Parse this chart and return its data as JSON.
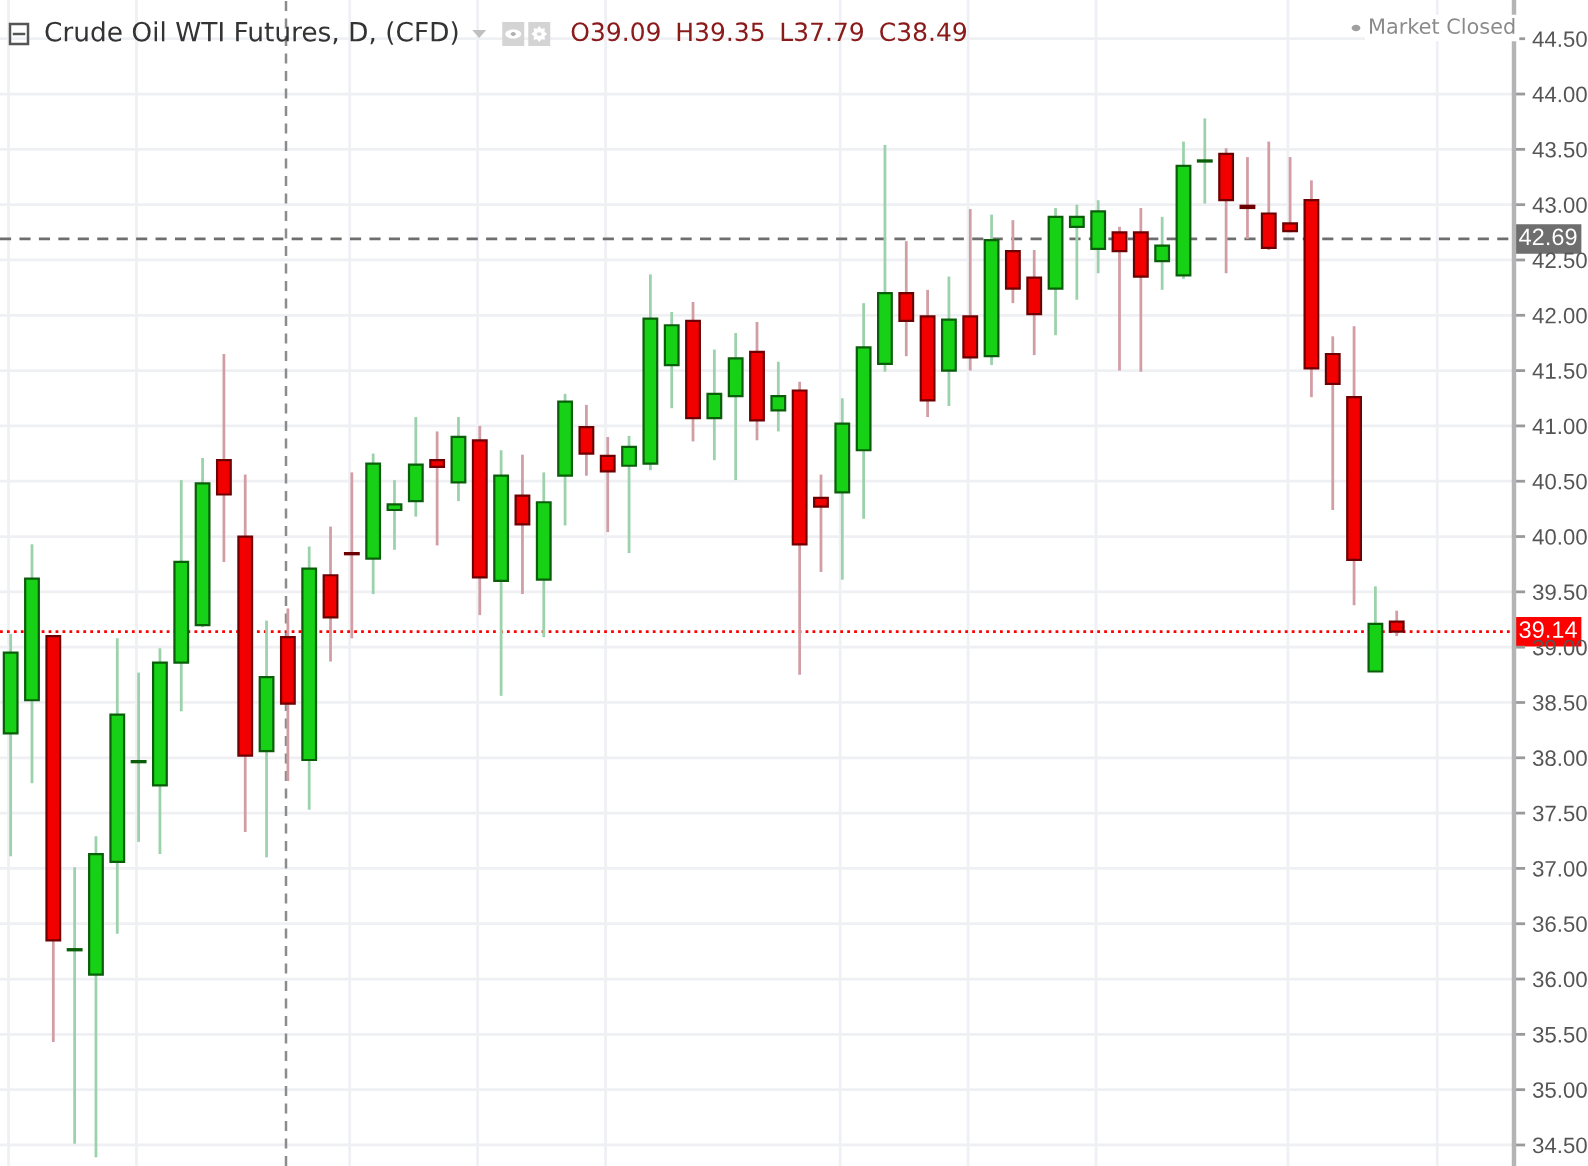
{
  "chart_data": {
    "type": "candlestick",
    "title": "Crude Oil WTI Futures, D, (CFD)",
    "annotations": [
      "O39.09",
      "H39.35",
      "L37.79",
      "C38.49",
      "Market Closed"
    ],
    "categories": [
      null,
      null,
      null,
      null,
      null,
      null,
      null,
      null,
      null,
      null,
      null,
      null,
      null,
      null,
      null,
      null,
      null,
      null,
      null,
      null,
      null,
      null,
      null,
      null,
      null,
      null,
      null,
      null,
      null,
      null,
      null,
      null,
      null,
      null,
      null,
      null,
      null,
      null,
      null,
      null,
      null,
      null,
      null,
      null,
      null,
      null,
      null,
      null,
      null,
      null,
      null,
      null,
      null,
      null,
      null,
      null,
      null,
      null,
      null,
      null,
      null,
      null,
      null,
      null,
      null,
      null,
      null,
      null,
      null,
      null,
      null
    ],
    "ohlc": [
      [
        38.22,
        39.12,
        37.11,
        38.95
      ],
      [
        38.52,
        39.93,
        37.77,
        39.62
      ],
      [
        39.1,
        39.1,
        35.43,
        36.35
      ],
      [
        36.26,
        37.01,
        34.51,
        36.27
      ],
      [
        36.04,
        37.29,
        34.39,
        37.13
      ],
      [
        37.06,
        39.08,
        36.41,
        38.39
      ],
      [
        37.96,
        38.77,
        37.24,
        37.97
      ],
      [
        37.75,
        38.99,
        37.13,
        38.86
      ],
      [
        38.86,
        40.51,
        38.42,
        39.77
      ],
      [
        39.2,
        40.71,
        39.18,
        40.48
      ],
      [
        40.69,
        41.65,
        39.77,
        40.38
      ],
      [
        40.0,
        40.56,
        37.33,
        38.02
      ],
      [
        38.06,
        39.24,
        37.1,
        38.73
      ],
      [
        39.09,
        39.35,
        37.79,
        38.49
      ],
      [
        37.98,
        39.91,
        37.53,
        39.71
      ],
      [
        39.65,
        40.09,
        38.87,
        39.27
      ],
      [
        39.85,
        40.58,
        39.08,
        39.84
      ],
      [
        39.8,
        40.75,
        39.48,
        40.66
      ],
      [
        40.24,
        40.51,
        39.88,
        40.29
      ],
      [
        40.32,
        41.08,
        40.18,
        40.65
      ],
      [
        40.69,
        40.95,
        39.92,
        40.63
      ],
      [
        40.49,
        41.08,
        40.32,
        40.9
      ],
      [
        40.87,
        41.0,
        39.29,
        39.63
      ],
      [
        39.6,
        40.78,
        38.56,
        40.55
      ],
      [
        40.37,
        40.74,
        39.48,
        40.11
      ],
      [
        39.61,
        40.58,
        39.09,
        40.31
      ],
      [
        40.55,
        41.29,
        40.1,
        41.22
      ],
      [
        40.99,
        41.19,
        40.55,
        40.75
      ],
      [
        40.73,
        40.9,
        40.04,
        40.59
      ],
      [
        40.64,
        40.91,
        39.85,
        40.81
      ],
      [
        40.66,
        42.37,
        40.6,
        41.97
      ],
      [
        41.55,
        42.03,
        41.16,
        41.91
      ],
      [
        41.95,
        42.12,
        40.86,
        41.07
      ],
      [
        41.07,
        41.69,
        40.69,
        41.29
      ],
      [
        41.27,
        41.84,
        40.51,
        41.61
      ],
      [
        41.67,
        41.94,
        40.87,
        41.05
      ],
      [
        41.14,
        41.58,
        40.95,
        41.27
      ],
      [
        41.32,
        41.4,
        38.75,
        39.93
      ],
      [
        40.35,
        40.56,
        39.68,
        40.27
      ],
      [
        40.4,
        41.25,
        39.61,
        41.02
      ],
      [
        40.78,
        42.11,
        40.16,
        41.71
      ],
      [
        41.56,
        43.54,
        41.49,
        42.2
      ],
      [
        42.2,
        42.67,
        41.63,
        41.95
      ],
      [
        41.99,
        42.23,
        41.08,
        41.23
      ],
      [
        41.5,
        42.35,
        41.18,
        41.96
      ],
      [
        41.99,
        42.96,
        41.5,
        41.62
      ],
      [
        41.63,
        42.91,
        41.55,
        42.68
      ],
      [
        42.58,
        42.86,
        42.11,
        42.24
      ],
      [
        42.34,
        42.59,
        41.64,
        42.01
      ],
      [
        42.24,
        42.97,
        41.82,
        42.89
      ],
      [
        42.8,
        43.0,
        42.14,
        42.89
      ],
      [
        42.6,
        43.04,
        42.38,
        42.94
      ],
      [
        42.75,
        42.8,
        41.5,
        42.58
      ],
      [
        42.75,
        42.97,
        41.49,
        42.35
      ],
      [
        42.49,
        42.89,
        42.23,
        42.63
      ],
      [
        42.36,
        43.57,
        42.33,
        43.35
      ],
      [
        43.39,
        43.78,
        43.01,
        43.4
      ],
      [
        43.46,
        43.51,
        42.38,
        43.04
      ],
      [
        42.99,
        43.43,
        42.69,
        42.97
      ],
      [
        42.92,
        43.57,
        42.59,
        42.61
      ],
      [
        42.83,
        43.43,
        42.75,
        42.76
      ],
      [
        43.04,
        43.22,
        41.26,
        41.52
      ],
      [
        41.65,
        41.81,
        40.24,
        41.38
      ],
      [
        41.26,
        41.9,
        39.38,
        39.79
      ],
      [
        38.78,
        39.55,
        38.78,
        39.21
      ],
      [
        39.23,
        39.33,
        39.1,
        39.14
      ],
      null,
      null,
      null,
      null,
      null
    ],
    "colors": [
      "#17d117",
      "#17d117",
      "#f20000",
      "#17d117",
      "#17d117",
      "#17d117",
      "#17d117",
      "#17d117",
      "#17d117",
      "#17d117",
      "#f20000",
      "#f20000",
      "#17d117",
      "#f20000",
      "#17d117",
      "#f20000",
      "#f20000",
      "#17d117",
      "#17d117",
      "#17d117",
      "#f20000",
      "#17d117",
      "#f20000",
      "#17d117",
      "#f20000",
      "#17d117",
      "#17d117",
      "#f20000",
      "#f20000",
      "#17d117",
      "#17d117",
      "#17d117",
      "#f20000",
      "#17d117",
      "#17d117",
      "#f20000",
      "#17d117",
      "#f20000",
      "#f20000",
      "#17d117",
      "#17d117",
      "#17d117",
      "#f20000",
      "#f20000",
      "#17d117",
      "#f20000",
      "#17d117",
      "#f20000",
      "#f20000",
      "#17d117",
      "#17d117",
      "#17d117",
      "#f20000",
      "#f20000",
      "#17d117",
      "#17d117",
      "#17d117",
      "#f20000",
      "#f20000",
      "#f20000",
      "#f20000",
      "#f20000",
      "#f20000",
      "#f20000",
      "#17d117",
      "#f20000",
      null,
      null,
      null,
      null,
      null
    ],
    "ylim": [
      34.31,
      44.85
    ],
    "yticks": [
      {
        "value": 34.5,
        "label": "34.50"
      },
      {
        "value": 35,
        "label": "35.00"
      },
      {
        "value": 35.5,
        "label": "35.50"
      },
      {
        "value": 36,
        "label": "36.00"
      },
      {
        "value": 36.5,
        "label": "36.50"
      },
      {
        "value": 37,
        "label": "37.00"
      },
      {
        "value": 37.5,
        "label": "37.50"
      },
      {
        "value": 38,
        "label": "38.00"
      },
      {
        "value": 38.5,
        "label": "38.50"
      },
      {
        "value": 39,
        "label": "39.00"
      },
      {
        "value": 39.5,
        "label": "39.50"
      },
      {
        "value": 40,
        "label": "40.00"
      },
      {
        "value": 40.5,
        "label": "40.50"
      },
      {
        "value": 41,
        "label": "41.00"
      },
      {
        "value": 41.5,
        "label": "41.50"
      },
      {
        "value": 42,
        "label": "42.00"
      },
      {
        "value": 42.5,
        "label": "42.50"
      },
      {
        "value": 43,
        "label": "43.00"
      },
      {
        "value": 43.5,
        "label": "43.50"
      },
      {
        "value": 44,
        "label": "44.00"
      },
      {
        "value": 44.5,
        "label": "44.50"
      }
    ],
    "ref_lines": [
      {
        "axis": "y",
        "value": 42.69,
        "label": "42.69",
        "color": "#6e6e6e",
        "line_style": "dashed"
      },
      {
        "axis": "y",
        "value": 39.14,
        "label": "39.14",
        "color": "#ff0000",
        "line_style": "dotted"
      }
    ],
    "grid": true,
    "tick_labels": "y"
  }
}
